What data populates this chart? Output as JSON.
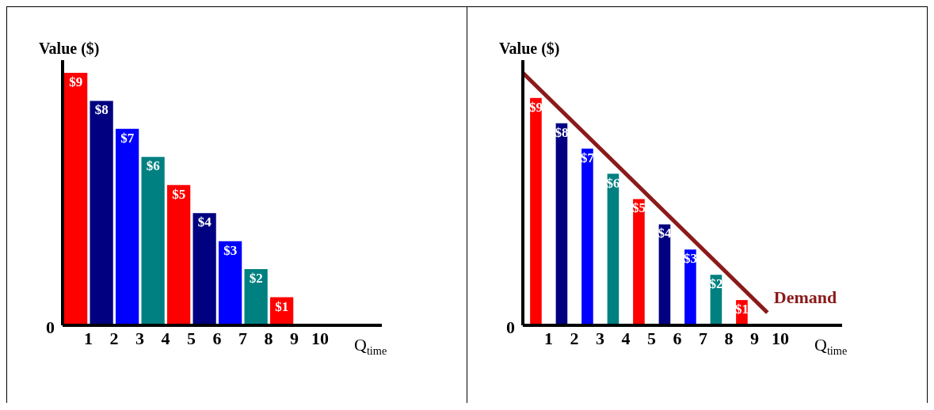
{
  "chart_data": [
    {
      "type": "bar",
      "ylabel": "Value ($)",
      "xlabel": "Q$_{time}$",
      "annotations": [
        "0"
      ],
      "x": [
        0.5,
        1.5,
        2.5,
        3.5,
        4.5,
        5.5,
        6.5,
        7.5,
        8.5
      ],
      "values": [
        9,
        8,
        7,
        6,
        5,
        4,
        3,
        2,
        1
      ],
      "colors": [
        "#ff0000",
        "#000080",
        "#0000ff",
        "#008080",
        "#ff0000",
        "#000080",
        "#0000ff",
        "#008080",
        "#ff0000"
      ],
      "value_labels": [
        "$9",
        "$8",
        "$7",
        "$6",
        "$5",
        "$4",
        "$3",
        "$2",
        "$1"
      ],
      "xlim": [
        0,
        12.4
      ],
      "xticks": [
        1,
        2,
        3,
        4,
        5,
        6,
        7,
        8,
        9,
        10
      ]
    },
    {
      "type": "bar",
      "ylabel": "Value ($)",
      "xlabel": "Q$_{time}$",
      "annotations": [
        "0"
      ],
      "series": [
        {
          "type": "bar",
          "x": [
            0.5,
            1.5,
            2.5,
            3.5,
            4.5,
            5.5,
            6.5,
            7.5,
            8.5
          ],
          "values": [
            9,
            8,
            7,
            6,
            5,
            4,
            3,
            2,
            1
          ],
          "colors": [
            "#ff0000",
            "#000080",
            "#0000ff",
            "#008080",
            "#ff0000",
            "#000080",
            "#0000ff",
            "#008080",
            "#ff0000"
          ],
          "value_labels": [
            "$9",
            "$8",
            "$7",
            "$6",
            "$5",
            "$4",
            "$3",
            "$2",
            "$1"
          ]
        },
        {
          "type": "line",
          "name": "Demand",
          "color": "#8b1a1a",
          "x": [
            0,
            9.5
          ],
          "values": [
            10,
            0.5
          ]
        }
      ],
      "xlim": [
        0,
        12.4
      ],
      "xticks": [
        1,
        2,
        3,
        4,
        5,
        6,
        7,
        8,
        9,
        10
      ]
    }
  ]
}
